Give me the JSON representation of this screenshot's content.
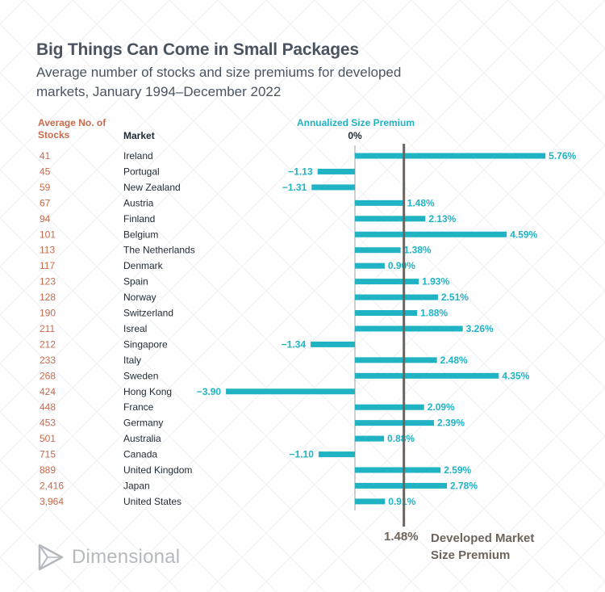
{
  "title": "Big Things Can Come in Small Packages",
  "subtitle": "Average number of stocks and size premiums for developed markets, January 1994–December 2022",
  "headers": {
    "stocks": "Average No. of Stocks",
    "market": "Market",
    "premium": "Annualized Size Premium",
    "zero": "0%"
  },
  "reference": {
    "value_label": "1.48%",
    "value": 1.48,
    "label": "Developed Market Size Premium"
  },
  "logo": {
    "text": "Dimensional"
  },
  "colors": {
    "bar": "#1fb3c4",
    "stocks_text": "#c86a4c",
    "reference_line": "#6d655c",
    "title": "#4a5460"
  },
  "chart_data": {
    "type": "bar",
    "orientation": "horizontal",
    "title": "Big Things Can Come in Small Packages",
    "xlabel": "Annualized Size Premium",
    "unit": "%",
    "reference_line": 1.48,
    "rows": [
      {
        "stocks": "41",
        "market": "Ireland",
        "value": 5.76,
        "label": "5.76%"
      },
      {
        "stocks": "45",
        "market": "Portugal",
        "value": -1.13,
        "label": "−1.13"
      },
      {
        "stocks": "59",
        "market": "New Zealand",
        "value": -1.31,
        "label": "−1.31"
      },
      {
        "stocks": "67",
        "market": "Austria",
        "value": 1.48,
        "label": "1.48%"
      },
      {
        "stocks": "94",
        "market": "Finland",
        "value": 2.13,
        "label": "2.13%"
      },
      {
        "stocks": "101",
        "market": "Belgium",
        "value": 4.59,
        "label": "4.59%"
      },
      {
        "stocks": "113",
        "market": "The Netherlands",
        "value": 1.38,
        "label": "1.38%"
      },
      {
        "stocks": "117",
        "market": "Denmark",
        "value": 0.9,
        "label": "0.90%"
      },
      {
        "stocks": "123",
        "market": "Spain",
        "value": 1.93,
        "label": "1.93%"
      },
      {
        "stocks": "128",
        "market": "Norway",
        "value": 2.51,
        "label": "2.51%"
      },
      {
        "stocks": "190",
        "market": "Switzerland",
        "value": 1.88,
        "label": "1.88%"
      },
      {
        "stocks": "211",
        "market": "Isreal",
        "value": 3.26,
        "label": "3.26%"
      },
      {
        "stocks": "212",
        "market": "Singapore",
        "value": -1.34,
        "label": "−1.34"
      },
      {
        "stocks": "233",
        "market": "Italy",
        "value": 2.48,
        "label": "2.48%"
      },
      {
        "stocks": "268",
        "market": "Sweden",
        "value": 4.35,
        "label": "4.35%"
      },
      {
        "stocks": "424",
        "market": "Hong Kong",
        "value": -3.9,
        "label": "−3.90"
      },
      {
        "stocks": "448",
        "market": "France",
        "value": 2.09,
        "label": "2.09%"
      },
      {
        "stocks": "453",
        "market": "Germany",
        "value": 2.39,
        "label": "2.39%"
      },
      {
        "stocks": "501",
        "market": "Australia",
        "value": 0.88,
        "label": "0.88%"
      },
      {
        "stocks": "715",
        "market": "Canada",
        "value": -1.1,
        "label": "−1.10"
      },
      {
        "stocks": "889",
        "market": "United Kingdom",
        "value": 2.59,
        "label": "2.59%"
      },
      {
        "stocks": "2,416",
        "market": "Japan",
        "value": 2.78,
        "label": "2.78%"
      },
      {
        "stocks": "3,964",
        "market": "United States",
        "value": 0.91,
        "label": "0.91%"
      }
    ]
  }
}
